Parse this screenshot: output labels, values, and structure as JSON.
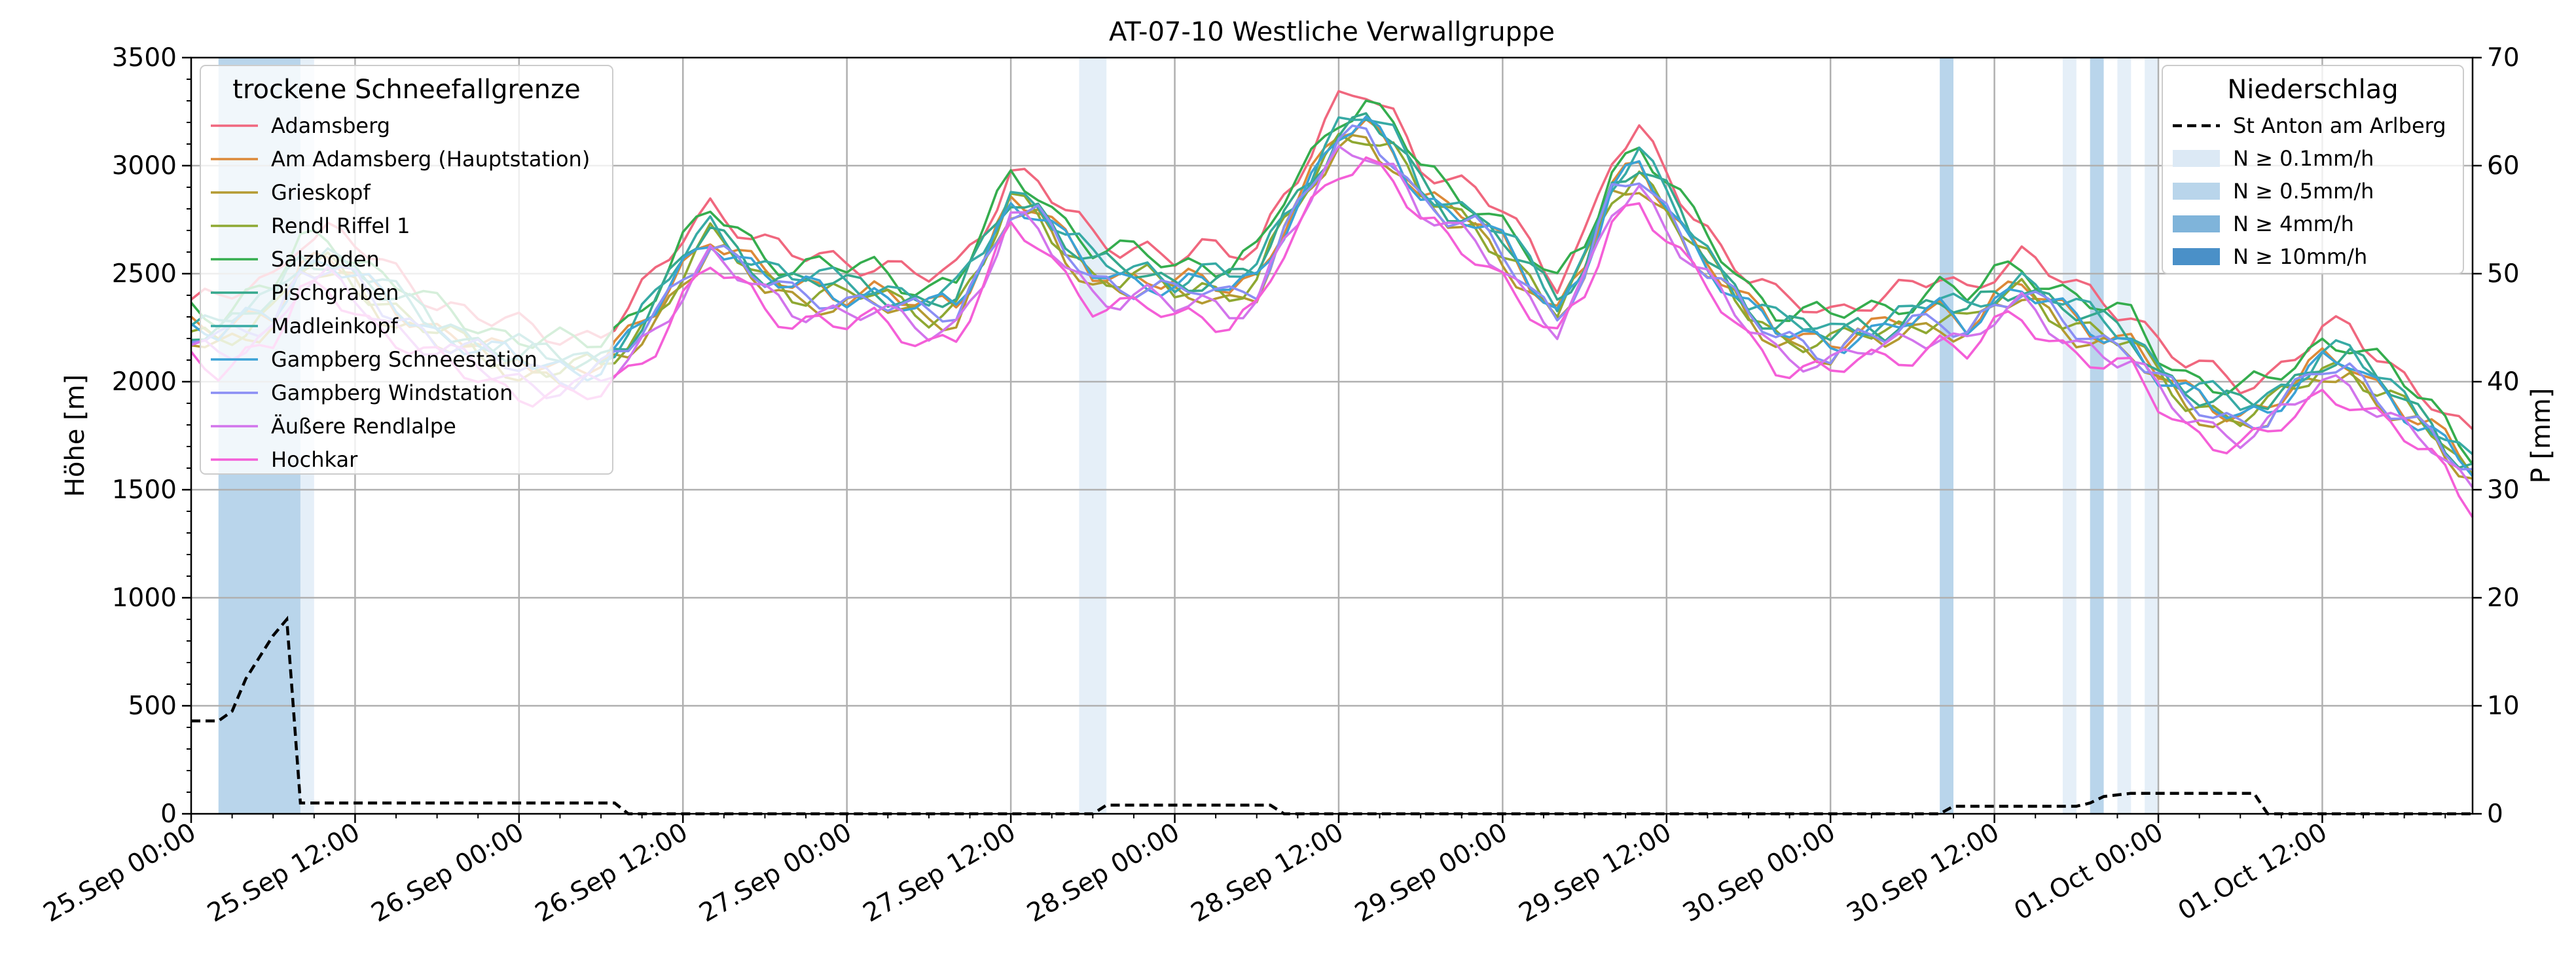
{
  "chart_data": {
    "type": "line",
    "title": "AT-07-10 Westliche Verwallgruppe",
    "ylabel_left": "Höhe [m]",
    "ylabel_right": "P [mm]",
    "ylim_left": [
      0,
      3500
    ],
    "ylim_right": [
      0,
      70
    ],
    "yticks_left": [
      "0",
      "500",
      "1000",
      "1500",
      "2000",
      "2500",
      "3000",
      "3500"
    ],
    "yticks_right": [
      "0",
      "10",
      "20",
      "30",
      "40",
      "50",
      "60",
      "70"
    ],
    "xlim_hours": [
      0,
      167
    ],
    "xticks": [
      "25.Sep 00:00",
      "25.Sep 12:00",
      "26.Sep 00:00",
      "26.Sep 12:00",
      "27.Sep 00:00",
      "27.Sep 12:00",
      "28.Sep 00:00",
      "28.Sep 12:00",
      "29.Sep 00:00",
      "29.Sep 12:00",
      "30.Sep 00:00",
      "30.Sep 12:00",
      "01.Oct 00:00",
      "01.Oct 12:00"
    ],
    "grid": true,
    "legend_left": {
      "title": "trockene Schneefallgrenze",
      "placement": "top-left",
      "entries": [
        {
          "name": "Adamsberg",
          "color": "#f0677e"
        },
        {
          "name": "Am Adamsberg (Hauptstation)",
          "color": "#dc8938"
        },
        {
          "name": "Grieskopf",
          "color": "#b49a31"
        },
        {
          "name": "Rendl Riffel 1",
          "color": "#8ea832"
        },
        {
          "name": "Salzboden",
          "color": "#35ad4e"
        },
        {
          "name": "Pischgraben",
          "color": "#35a88d"
        },
        {
          "name": "Madleinkopf",
          "color": "#37aaa5"
        },
        {
          "name": "Gampberg Schneestation",
          "color": "#3ba2d6"
        },
        {
          "name": "Gampberg Windstation",
          "color": "#8a8ef4"
        },
        {
          "name": "Äußere Rendlalpe",
          "color": "#d274ec"
        },
        {
          "name": "Hochkar",
          "color": "#f45fd8"
        }
      ]
    },
    "legend_right": {
      "title": "Niederschlag",
      "placement": "top-right",
      "entries": [
        {
          "name": "St Anton am Arlberg",
          "color": "#000000",
          "style": "dashed"
        },
        {
          "name": "N ≥ 0.1mm/h",
          "color": "#dce9f5"
        },
        {
          "name": "N ≥ 0.5mm/h",
          "color": "#b9d5eb"
        },
        {
          "name": "N ≥ 4mm/h",
          "color": "#7fb4da"
        },
        {
          "name": "N ≥ 10mm/h",
          "color": "#4a90c8"
        }
      ]
    },
    "precip_bands": [
      {
        "start": 2,
        "end": 8,
        "level": 1
      },
      {
        "start": 8,
        "end": 9,
        "level": 0
      },
      {
        "start": 65,
        "end": 67,
        "level": 0
      },
      {
        "start": 128,
        "end": 129,
        "level": 1
      },
      {
        "start": 137,
        "end": 138,
        "level": 0
      },
      {
        "start": 139,
        "end": 140,
        "level": 1
      },
      {
        "start": 141,
        "end": 142,
        "level": 0
      },
      {
        "start": 143,
        "end": 144,
        "level": 0
      }
    ],
    "precip_cumulative": {
      "name": "St Anton am Arlberg",
      "points": [
        [
          0,
          8.6
        ],
        [
          2,
          8.6
        ],
        [
          3,
          9.5
        ],
        [
          4,
          12.5
        ],
        [
          5,
          14.5
        ],
        [
          6,
          16.5
        ],
        [
          7,
          18.0
        ],
        [
          8,
          1.0
        ],
        [
          31,
          1.0
        ],
        [
          32,
          0.0
        ],
        [
          66,
          0.0
        ],
        [
          67,
          0.8
        ],
        [
          79,
          0.8
        ],
        [
          80,
          0.0
        ],
        [
          128,
          0.0
        ],
        [
          129,
          0.7
        ],
        [
          138,
          0.7
        ],
        [
          139,
          1.0
        ],
        [
          140,
          1.6
        ],
        [
          142,
          1.9
        ],
        [
          151,
          1.9
        ],
        [
          152,
          0.0
        ],
        [
          167,
          0.0
        ]
      ]
    },
    "series_base": [
      [
        0,
        2200
      ],
      [
        2,
        2180
      ],
      [
        4,
        2250
      ],
      [
        6,
        2300
      ],
      [
        8,
        2500
      ],
      [
        10,
        2520
      ],
      [
        12,
        2450
      ],
      [
        14,
        2350
      ],
      [
        16,
        2280
      ],
      [
        18,
        2200
      ],
      [
        20,
        2150
      ],
      [
        22,
        2100
      ],
      [
        24,
        2070
      ],
      [
        26,
        2050
      ],
      [
        28,
        2030
      ],
      [
        30,
        2050
      ],
      [
        32,
        2150
      ],
      [
        34,
        2300
      ],
      [
        36,
        2500
      ],
      [
        38,
        2650
      ],
      [
        40,
        2550
      ],
      [
        42,
        2450
      ],
      [
        44,
        2400
      ],
      [
        46,
        2400
      ],
      [
        48,
        2380
      ],
      [
        50,
        2380
      ],
      [
        52,
        2330
      ],
      [
        54,
        2300
      ],
      [
        56,
        2330
      ],
      [
        58,
        2550
      ],
      [
        60,
        2800
      ],
      [
        62,
        2750
      ],
      [
        64,
        2600
      ],
      [
        66,
        2480
      ],
      [
        68,
        2450
      ],
      [
        70,
        2450
      ],
      [
        72,
        2400
      ],
      [
        74,
        2420
      ],
      [
        76,
        2400
      ],
      [
        78,
        2450
      ],
      [
        80,
        2700
      ],
      [
        82,
        2900
      ],
      [
        84,
        3100
      ],
      [
        86,
        3150
      ],
      [
        88,
        3050
      ],
      [
        90,
        2850
      ],
      [
        92,
        2750
      ],
      [
        94,
        2700
      ],
      [
        96,
        2600
      ],
      [
        98,
        2450
      ],
      [
        100,
        2300
      ],
      [
        102,
        2500
      ],
      [
        104,
        2850
      ],
      [
        106,
        2950
      ],
      [
        108,
        2800
      ],
      [
        110,
        2600
      ],
      [
        112,
        2450
      ],
      [
        114,
        2300
      ],
      [
        116,
        2200
      ],
      [
        118,
        2180
      ],
      [
        120,
        2150
      ],
      [
        122,
        2200
      ],
      [
        124,
        2200
      ],
      [
        126,
        2250
      ],
      [
        128,
        2300
      ],
      [
        130,
        2250
      ],
      [
        132,
        2350
      ],
      [
        134,
        2400
      ],
      [
        136,
        2320
      ],
      [
        138,
        2250
      ],
      [
        140,
        2200
      ],
      [
        142,
        2150
      ],
      [
        144,
        2000
      ],
      [
        146,
        1900
      ],
      [
        148,
        1850
      ],
      [
        150,
        1820
      ],
      [
        152,
        1850
      ],
      [
        154,
        1950
      ],
      [
        156,
        2050
      ],
      [
        158,
        2050
      ],
      [
        160,
        1950
      ],
      [
        162,
        1850
      ],
      [
        164,
        1750
      ],
      [
        166,
        1600
      ],
      [
        167,
        1550
      ]
    ],
    "series": [
      {
        "name": "Adamsberg",
        "offset": 180
      },
      {
        "name": "Am Adamsberg (Hauptstation)",
        "offset": 40
      },
      {
        "name": "Grieskopf",
        "offset": -20
      },
      {
        "name": "Rendl Riffel 1",
        "offset": 20
      },
      {
        "name": "Salzboden",
        "offset": 140
      },
      {
        "name": "Pischgraben",
        "offset": 60
      },
      {
        "name": "Madleinkopf",
        "offset": 80
      },
      {
        "name": "Gampberg Schneestation",
        "offset": 30
      },
      {
        "name": "Gampberg Windstation",
        "offset": 0
      },
      {
        "name": "Äußere Rendlalpe",
        "offset": -60
      },
      {
        "name": "Hochkar",
        "offset": -110
      }
    ]
  }
}
